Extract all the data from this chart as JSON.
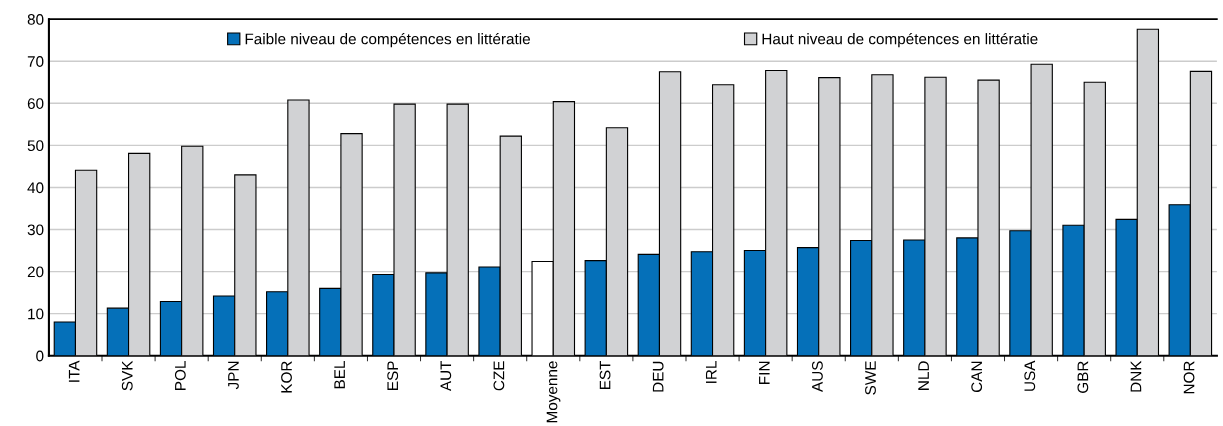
{
  "chart_data": {
    "type": "bar",
    "categories": [
      "ITA",
      "SVK",
      "POL",
      "JPN",
      "KOR",
      "BEL",
      "ESP",
      "AUT",
      "CZE",
      "Moyenne",
      "EST",
      "DEU",
      "IRL",
      "FIN",
      "AUS",
      "SWE",
      "NLD",
      "CAN",
      "USA",
      "GBR",
      "DNK",
      "NOR"
    ],
    "series": [
      {
        "name": "Faible niveau de compétences en littératie",
        "color": "#0570b9",
        "colors": [
          "#0570b9",
          "#0570b9",
          "#0570b9",
          "#0570b9",
          "#0570b9",
          "#0570b9",
          "#0570b9",
          "#0570b9",
          "#0570b9",
          "#ffffff",
          "#0570b9",
          "#0570b9",
          "#0570b9",
          "#0570b9",
          "#0570b9",
          "#0570b9",
          "#0570b9",
          "#0570b9",
          "#0570b9",
          "#0570b9",
          "#0570b9",
          "#0570b9"
        ],
        "values": [
          8,
          11.3,
          12.9,
          14.2,
          15.2,
          16,
          19.3,
          19.7,
          21.1,
          22.4,
          22.6,
          24.1,
          24.7,
          25,
          25.7,
          27.4,
          27.5,
          28,
          29.7,
          31,
          32.4,
          35.9
        ]
      },
      {
        "name": "Haut niveau de compétences en littératie",
        "color": "#d1d2d4",
        "values": [
          44.1,
          48.1,
          49.8,
          43,
          60.8,
          52.8,
          59.8,
          59.8,
          52.2,
          60.4,
          54.2,
          67.5,
          64.4,
          67.8,
          66.1,
          66.8,
          66.2,
          65.5,
          69.3,
          65,
          77.6,
          67.6
        ]
      }
    ],
    "ylim": [
      0,
      80
    ],
    "yticks": [
      0,
      10,
      20,
      30,
      40,
      50,
      60,
      70,
      80
    ],
    "grid": "y",
    "legend": "top"
  }
}
